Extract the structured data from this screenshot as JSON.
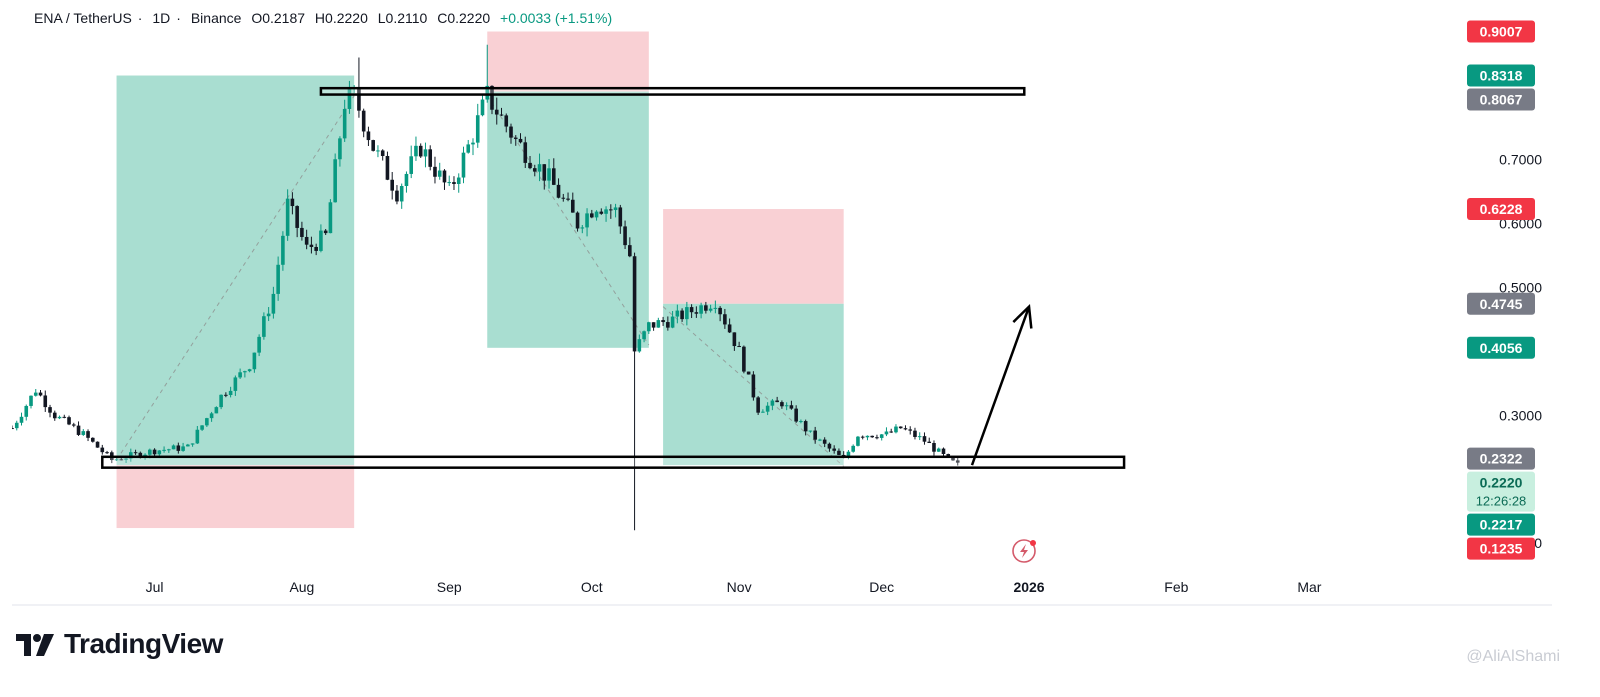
{
  "legend": {
    "symbol": "ENA / TetherUS",
    "interval": "1D",
    "exchange": "Binance",
    "open": "O0.2187",
    "high": "H0.2220",
    "low": "L0.2110",
    "close": "C0.2220",
    "change": "+0.0033 (+1.51%)"
  },
  "branding": {
    "logo_text": "TradingView"
  },
  "watermark": "@AliAlShami",
  "colors": {
    "up": "#089981",
    "down": "#131722",
    "profit_zone": "#a4dccf",
    "loss_zone": "#f9cdd2",
    "red_label": "#f23645",
    "green_label": "#089981",
    "gray_label": "#787b86",
    "axis_text": "#131722"
  },
  "chart_data": {
    "type": "candlestick",
    "title": "ENA / TetherUS · 1D · Binance",
    "ylim": [
      0.05,
      0.95
    ],
    "xlim": [
      "2025-06-01",
      "2026-03-31"
    ],
    "x_ticks": [
      {
        "date": "2025-07-01",
        "label": "Jul"
      },
      {
        "date": "2025-08-01",
        "label": "Aug"
      },
      {
        "date": "2025-09-01",
        "label": "Sep"
      },
      {
        "date": "2025-10-01",
        "label": "Oct"
      },
      {
        "date": "2025-11-01",
        "label": "Nov"
      },
      {
        "date": "2025-12-01",
        "label": "Dec"
      },
      {
        "date": "2026-01-01",
        "label": "2026"
      },
      {
        "date": "2026-02-01",
        "label": "Feb"
      },
      {
        "date": "2026-03-01",
        "label": "Mar"
      }
    ],
    "y_ticks": [
      0.1,
      0.3,
      0.5,
      0.6,
      0.7
    ],
    "y_tick_labels": [
      "0.1000",
      "0.3000",
      "0.5000",
      "0.6000",
      "0.7000"
    ],
    "price_labels": [
      {
        "value": 0.9007,
        "label": "0.9007",
        "color": "red"
      },
      {
        "value": 0.8318,
        "label": "0.8318",
        "color": "green"
      },
      {
        "value": 0.8067,
        "label": "0.8067",
        "color": "gray"
      },
      {
        "value": 0.6228,
        "label": "0.6228",
        "color": "red"
      },
      {
        "value": 0.4745,
        "label": "0.4745",
        "color": "gray"
      },
      {
        "value": 0.4056,
        "label": "0.4056",
        "color": "green"
      },
      {
        "value": 0.2322,
        "label": "0.2322",
        "color": "gray"
      },
      {
        "value": 0.222,
        "label": "0.2220",
        "sublabel": "12:26:28",
        "color": "green-light"
      },
      {
        "value": 0.2217,
        "label": "0.2217",
        "color": "green"
      },
      {
        "value": 0.1235,
        "label": "0.1235",
        "color": "red"
      }
    ],
    "anchors": [
      [
        "2025-06-01",
        0.28
      ],
      [
        "2025-06-06",
        0.34
      ],
      [
        "2025-06-10",
        0.3
      ],
      [
        "2025-06-16",
        0.27
      ],
      [
        "2025-06-22",
        0.23
      ],
      [
        "2025-07-01",
        0.245
      ],
      [
        "2025-07-08",
        0.25
      ],
      [
        "2025-07-15",
        0.33
      ],
      [
        "2025-07-21",
        0.38
      ],
      [
        "2025-07-26",
        0.49
      ],
      [
        "2025-07-29",
        0.63
      ],
      [
        "2025-08-02",
        0.56
      ],
      [
        "2025-08-06",
        0.58
      ],
      [
        "2025-08-10",
        0.79
      ],
      [
        "2025-08-12",
        0.8
      ],
      [
        "2025-08-16",
        0.72
      ],
      [
        "2025-08-21",
        0.65
      ],
      [
        "2025-08-26",
        0.72
      ],
      [
        "2025-09-01",
        0.65
      ],
      [
        "2025-09-05",
        0.72
      ],
      [
        "2025-09-09",
        0.8
      ],
      [
        "2025-09-15",
        0.73
      ],
      [
        "2025-09-22",
        0.67
      ],
      [
        "2025-09-28",
        0.6
      ],
      [
        "2025-10-02",
        0.63
      ],
      [
        "2025-10-06",
        0.62
      ],
      [
        "2025-10-09",
        0.55
      ],
      [
        "2025-10-10",
        0.4
      ],
      [
        "2025-10-13",
        0.44
      ],
      [
        "2025-10-18",
        0.45
      ],
      [
        "2025-10-24",
        0.47
      ],
      [
        "2025-10-27",
        0.48
      ],
      [
        "2025-11-01",
        0.4
      ],
      [
        "2025-11-05",
        0.31
      ],
      [
        "2025-11-10",
        0.32
      ],
      [
        "2025-11-16",
        0.27
      ],
      [
        "2025-11-23",
        0.23
      ],
      [
        "2025-11-26",
        0.27
      ],
      [
        "2025-12-02",
        0.27
      ],
      [
        "2025-12-05",
        0.28
      ],
      [
        "2025-12-10",
        0.26
      ],
      [
        "2025-12-15",
        0.23
      ],
      [
        "2025-12-17",
        0.222
      ]
    ],
    "key_candles": [
      {
        "date": "2025-08-13",
        "high": 0.86
      },
      {
        "date": "2025-09-09",
        "high": 0.88
      },
      {
        "date": "2025-10-10",
        "low": 0.12
      }
    ],
    "position_zones": [
      {
        "kind": "profit",
        "start": "2025-06-23",
        "end": "2025-08-12",
        "from": 0.222,
        "to": 0.8318
      },
      {
        "kind": "loss",
        "start": "2025-06-23",
        "end": "2025-08-12",
        "from": 0.1235,
        "to": 0.222
      },
      {
        "kind": "loss",
        "start": "2025-09-09",
        "end": "2025-10-13",
        "from": 0.8067,
        "to": 0.9007
      },
      {
        "kind": "profit",
        "start": "2025-09-09",
        "end": "2025-10-13",
        "from": 0.4056,
        "to": 0.8067
      },
      {
        "kind": "loss",
        "start": "2025-10-16",
        "end": "2025-11-23",
        "from": 0.4745,
        "to": 0.6228
      },
      {
        "kind": "profit",
        "start": "2025-10-16",
        "end": "2025-11-23",
        "from": 0.222,
        "to": 0.4745
      }
    ],
    "dashed_lines": [
      {
        "from": [
          "2025-06-23",
          0.23
        ],
        "to": [
          "2025-08-12",
          0.8
        ]
      },
      {
        "from": [
          "2025-09-09",
          0.8
        ],
        "to": [
          "2025-10-13",
          0.41
        ]
      },
      {
        "from": [
          "2025-10-16",
          0.47
        ],
        "to": [
          "2025-11-23",
          0.22
        ]
      }
    ],
    "resistance_box": {
      "start": "2025-08-05",
      "end": "2025-12-31",
      "top": 0.812,
      "bottom": 0.802
    },
    "support_box": {
      "start": "2025-06-20",
      "end": "2026-01-21",
      "top": 0.235,
      "bottom": 0.218
    },
    "arrow": {
      "from": [
        "2025-12-20",
        0.222
      ],
      "to": [
        "2026-01-01",
        0.47
      ]
    }
  }
}
